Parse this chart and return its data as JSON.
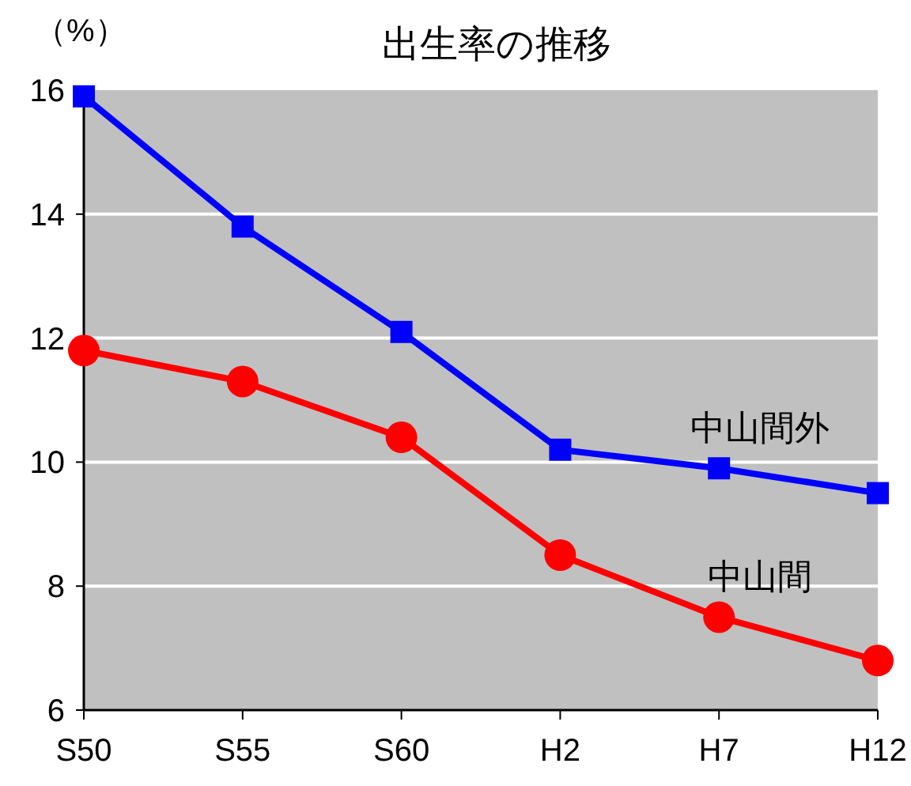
{
  "chart_data": {
    "type": "line",
    "title": "出生率の推移",
    "ylabel": "（%）",
    "categories": [
      "S50",
      "S55",
      "S60",
      "H2",
      "H7",
      "H12"
    ],
    "series": [
      {
        "name": "中山間外",
        "color": "#0000ff",
        "marker": "square",
        "values": [
          15.9,
          13.8,
          12.1,
          10.2,
          9.9,
          9.5
        ]
      },
      {
        "name": "中山間",
        "color": "#ff0000",
        "marker": "circle",
        "values": [
          11.8,
          11.3,
          10.4,
          8.5,
          7.5,
          6.8
        ]
      }
    ],
    "ylim": [
      6,
      16
    ],
    "yticks": [
      6,
      8,
      10,
      12,
      14,
      16
    ],
    "grid": "y",
    "legend": false
  }
}
